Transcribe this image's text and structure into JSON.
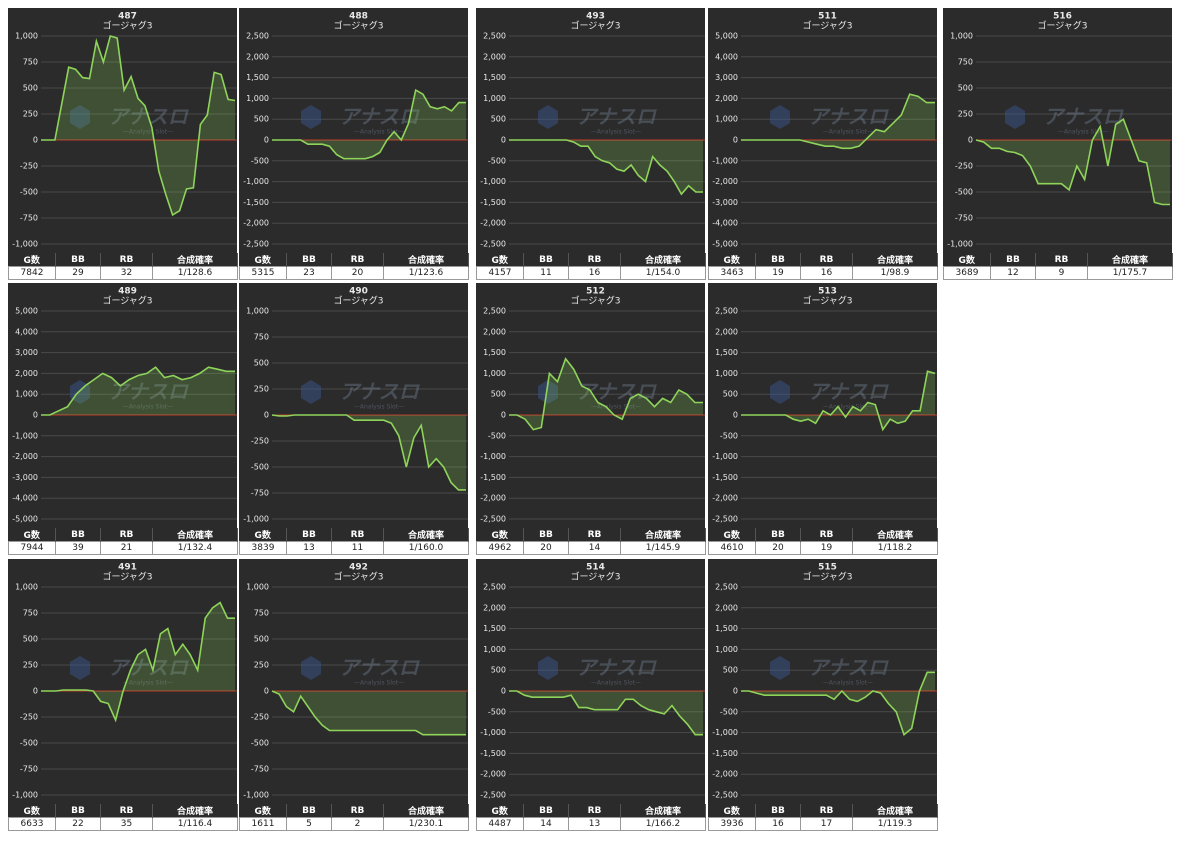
{
  "watermark": {
    "name": "アナスロ",
    "tagline": "—Analysis Slot—"
  },
  "chart_data": [
    {
      "type": "line",
      "title": "487",
      "subtitle": "ゴージャグ3",
      "color": "#8fd45a",
      "ylim": [
        -1000,
        1000
      ],
      "yticks": [
        {
          "value": 1000,
          "label": "1,000"
        },
        750,
        500,
        250,
        0,
        -250,
        -500,
        -750,
        {
          "value": -1000,
          "label": "-1,000"
        }
      ],
      "values": [
        0,
        0,
        0,
        350,
        700,
        680,
        600,
        590,
        950,
        750,
        1000,
        980,
        480,
        610,
        400,
        330,
        120,
        -300,
        -520,
        -720,
        -680,
        -470,
        -460,
        150,
        240,
        650,
        630,
        390,
        380
      ],
      "table": {
        "headers": [
          "G数",
          "BB",
          "RB",
          "合成確率"
        ],
        "row": [
          7842,
          29,
          32,
          "1/128.6"
        ]
      }
    },
    {
      "type": "line",
      "title": "488",
      "subtitle": "ゴージャグ3",
      "color": "#8fd45a",
      "ylim": [
        -2500,
        2500
      ],
      "yticks": [
        {
          "value": 2500,
          "label": "2,500"
        },
        {
          "value": 2000,
          "label": "2,000"
        },
        {
          "value": 1500,
          "label": "1,500"
        },
        {
          "value": 1000,
          "label": "1,000"
        },
        500,
        0,
        -500,
        {
          "value": -1000,
          "label": "-1,000"
        },
        {
          "value": -1500,
          "label": "-1,500"
        },
        {
          "value": -2000,
          "label": "-2,000"
        },
        {
          "value": -2500,
          "label": "-2,500"
        }
      ],
      "values": [
        0,
        0,
        0,
        0,
        0,
        -100,
        -100,
        -100,
        -150,
        -350,
        -450,
        -450,
        -450,
        -450,
        -400,
        -300,
        0,
        200,
        0,
        400,
        1200,
        1100,
        800,
        750,
        800,
        700,
        900,
        900
      ],
      "table": {
        "headers": [
          "G数",
          "BB",
          "RB",
          "合成確率"
        ],
        "row": [
          5315,
          23,
          20,
          "1/123.6"
        ]
      }
    },
    {
      "type": "line",
      "title": "493",
      "subtitle": "ゴージャグ3",
      "color": "#8fd45a",
      "ylim": [
        -2500,
        2500
      ],
      "yticks": [
        {
          "value": 2500,
          "label": "2,500"
        },
        {
          "value": 2000,
          "label": "2,000"
        },
        {
          "value": 1500,
          "label": "1,500"
        },
        {
          "value": 1000,
          "label": "1,000"
        },
        500,
        0,
        -500,
        {
          "value": -1000,
          "label": "-1,000"
        },
        {
          "value": -1500,
          "label": "-1,500"
        },
        {
          "value": -2000,
          "label": "-2,000"
        },
        {
          "value": -2500,
          "label": "-2,500"
        }
      ],
      "values": [
        0,
        0,
        0,
        0,
        0,
        0,
        0,
        0,
        0,
        -50,
        -150,
        -150,
        -400,
        -500,
        -550,
        -700,
        -750,
        -600,
        -850,
        -1000,
        -400,
        -600,
        -750,
        -1000,
        -1300,
        -1100,
        -1250,
        -1250
      ],
      "table": {
        "headers": [
          "G数",
          "BB",
          "RB",
          "合成確率"
        ],
        "row": [
          4157,
          11,
          16,
          "1/154.0"
        ]
      }
    },
    {
      "type": "line",
      "title": "511",
      "subtitle": "ゴージャグ3",
      "color": "#8fd45a",
      "ylim": [
        -5000,
        5000
      ],
      "yticks": [
        {
          "value": 5000,
          "label": "5,000"
        },
        {
          "value": 4000,
          "label": "4,000"
        },
        {
          "value": 3000,
          "label": "3,000"
        },
        {
          "value": 2000,
          "label": "2,000"
        },
        {
          "value": 1000,
          "label": "1,000"
        },
        0,
        {
          "value": -1000,
          "label": "-1,000"
        },
        {
          "value": -2000,
          "label": "-2,000"
        },
        {
          "value": -3000,
          "label": "-3,000"
        },
        {
          "value": -4000,
          "label": "-4,000"
        },
        {
          "value": -5000,
          "label": "-5,000"
        }
      ],
      "values": [
        0,
        0,
        0,
        0,
        0,
        0,
        0,
        0,
        -100,
        -200,
        -300,
        -300,
        -400,
        -400,
        -300,
        100,
        500,
        400,
        800,
        1200,
        2200,
        2100,
        1800,
        1800
      ],
      "table": {
        "headers": [
          "G数",
          "BB",
          "RB",
          "合成確率"
        ],
        "row": [
          3463,
          19,
          16,
          "1/98.9"
        ]
      }
    },
    {
      "type": "line",
      "title": "516",
      "subtitle": "ゴージャグ3",
      "color": "#8fd45a",
      "ylim": [
        -1000,
        1000
      ],
      "yticks": [
        {
          "value": 1000,
          "label": "1,000"
        },
        750,
        500,
        250,
        0,
        -250,
        -500,
        -750,
        {
          "value": -1000,
          "label": "-1,000"
        }
      ],
      "values": [
        0,
        -20,
        -80,
        -80,
        -110,
        -120,
        -150,
        -250,
        -420,
        -420,
        -420,
        -420,
        -480,
        -250,
        -380,
        0,
        130,
        -250,
        150,
        200,
        0,
        -200,
        -220,
        -600,
        -620,
        -620
      ],
      "table": {
        "headers": [
          "G数",
          "BB",
          "RB",
          "合成確率"
        ],
        "row": [
          3689,
          12,
          9,
          "1/175.7"
        ]
      }
    },
    {
      "type": "line",
      "title": "489",
      "subtitle": "ゴージャグ3",
      "color": "#8fd45a",
      "ylim": [
        -5000,
        5000
      ],
      "yticks": [
        {
          "value": 5000,
          "label": "5,000"
        },
        {
          "value": 4000,
          "label": "4,000"
        },
        {
          "value": 3000,
          "label": "3,000"
        },
        {
          "value": 2000,
          "label": "2,000"
        },
        {
          "value": 1000,
          "label": "1,000"
        },
        0,
        {
          "value": -1000,
          "label": "-1,000"
        },
        {
          "value": -2000,
          "label": "-2,000"
        },
        {
          "value": -3000,
          "label": "-3,000"
        },
        {
          "value": -4000,
          "label": "-4,000"
        },
        {
          "value": -5000,
          "label": "-5,000"
        }
      ],
      "values": [
        0,
        0,
        200,
        400,
        1000,
        1400,
        1700,
        2000,
        1800,
        1400,
        1700,
        1900,
        2000,
        2300,
        1800,
        1900,
        1700,
        1800,
        2000,
        2300,
        2200,
        2100,
        2100
      ],
      "table": {
        "headers": [
          "G数",
          "BB",
          "RB",
          "合成確率"
        ],
        "row": [
          7944,
          39,
          21,
          "1/132.4"
        ]
      }
    },
    {
      "type": "line",
      "title": "490",
      "subtitle": "ゴージャグ3",
      "color": "#8fd45a",
      "ylim": [
        -1000,
        1000
      ],
      "yticks": [
        {
          "value": 1000,
          "label": "1,000"
        },
        750,
        500,
        250,
        0,
        -250,
        -500,
        -750,
        {
          "value": -1000,
          "label": "-1,000"
        }
      ],
      "values": [
        0,
        -10,
        -10,
        0,
        0,
        0,
        0,
        0,
        0,
        0,
        0,
        -50,
        -50,
        -50,
        -50,
        -50,
        -80,
        -200,
        -500,
        -220,
        -100,
        -500,
        -420,
        -500,
        -650,
        -720,
        -720
      ],
      "table": {
        "headers": [
          "G数",
          "BB",
          "RB",
          "合成確率"
        ],
        "row": [
          3839,
          13,
          11,
          "1/160.0"
        ]
      }
    },
    {
      "type": "line",
      "title": "512",
      "subtitle": "ゴージャグ3",
      "color": "#8fd45a",
      "ylim": [
        -2500,
        2500
      ],
      "yticks": [
        {
          "value": 2500,
          "label": "2,500"
        },
        {
          "value": 2000,
          "label": "2,000"
        },
        {
          "value": 1500,
          "label": "1,500"
        },
        {
          "value": 1000,
          "label": "1,000"
        },
        500,
        0,
        -500,
        {
          "value": -1000,
          "label": "-1,000"
        },
        {
          "value": -1500,
          "label": "-1,500"
        },
        {
          "value": -2000,
          "label": "-2,000"
        },
        {
          "value": -2500,
          "label": "-2,500"
        }
      ],
      "values": [
        0,
        0,
        -100,
        -350,
        -300,
        1000,
        800,
        1350,
        1100,
        700,
        600,
        300,
        200,
        0,
        -100,
        400,
        500,
        400,
        200,
        400,
        300,
        600,
        500,
        300,
        300
      ],
      "table": {
        "headers": [
          "G数",
          "BB",
          "RB",
          "合成確率"
        ],
        "row": [
          4962,
          20,
          14,
          "1/145.9"
        ]
      }
    },
    {
      "type": "line",
      "title": "513",
      "subtitle": "ゴージャグ3",
      "color": "#8fd45a",
      "ylim": [
        -2500,
        2500
      ],
      "yticks": [
        {
          "value": 2500,
          "label": "2,500"
        },
        {
          "value": 2000,
          "label": "2,000"
        },
        {
          "value": 1500,
          "label": "1,500"
        },
        {
          "value": 1000,
          "label": "1,000"
        },
        500,
        0,
        -500,
        {
          "value": -1000,
          "label": "-1,000"
        },
        {
          "value": -1500,
          "label": "-1,500"
        },
        {
          "value": -2000,
          "label": "-2,000"
        },
        {
          "value": -2500,
          "label": "-2,500"
        }
      ],
      "values": [
        0,
        0,
        0,
        0,
        0,
        0,
        0,
        -100,
        -150,
        -100,
        -200,
        100,
        0,
        200,
        -50,
        200,
        100,
        300,
        250,
        -350,
        -100,
        -200,
        -150,
        100,
        100,
        1050,
        1000
      ],
      "table": {
        "headers": [
          "G数",
          "BB",
          "RB",
          "合成確率"
        ],
        "row": [
          4610,
          20,
          19,
          "1/118.2"
        ]
      }
    },
    {
      "type": "line",
      "title": "491",
      "subtitle": "ゴージャグ3",
      "color": "#8fd45a",
      "ylim": [
        -1000,
        1000
      ],
      "yticks": [
        {
          "value": 1000,
          "label": "1,000"
        },
        750,
        500,
        250,
        0,
        -250,
        -500,
        -750,
        {
          "value": -1000,
          "label": "-1,000"
        }
      ],
      "values": [
        0,
        0,
        0,
        10,
        10,
        10,
        10,
        0,
        -100,
        -120,
        -280,
        0,
        200,
        350,
        400,
        200,
        550,
        600,
        350,
        450,
        350,
        200,
        700,
        800,
        850,
        700,
        700
      ],
      "table": {
        "headers": [
          "G数",
          "BB",
          "RB",
          "合成確率"
        ],
        "row": [
          6633,
          22,
          35,
          "1/116.4"
        ]
      }
    },
    {
      "type": "line",
      "title": "492",
      "subtitle": "ゴージャグ3",
      "color": "#8fd45a",
      "ylim": [
        -1000,
        1000
      ],
      "yticks": [
        {
          "value": 1000,
          "label": "1,000"
        },
        750,
        500,
        250,
        0,
        -250,
        -500,
        -750,
        {
          "value": -1000,
          "label": "-1,000"
        }
      ],
      "values": [
        0,
        -30,
        -150,
        -200,
        -50,
        -150,
        -250,
        -330,
        -380,
        -380,
        -380,
        -380,
        -380,
        -380,
        -380,
        -380,
        -380,
        -380,
        -380,
        -380,
        -380,
        -420,
        -420,
        -420,
        -420,
        -420,
        -420,
        -420
      ],
      "table": {
        "headers": [
          "G数",
          "BB",
          "RB",
          "合成確率"
        ],
        "row": [
          1611,
          5,
          2,
          "1/230.1"
        ]
      }
    },
    {
      "type": "line",
      "title": "514",
      "subtitle": "ゴージャグ3",
      "color": "#8fd45a",
      "ylim": [
        -2500,
        2500
      ],
      "yticks": [
        {
          "value": 2500,
          "label": "2,500"
        },
        {
          "value": 2000,
          "label": "2,000"
        },
        {
          "value": 1500,
          "label": "1,500"
        },
        {
          "value": 1000,
          "label": "1,000"
        },
        500,
        0,
        -500,
        {
          "value": -1000,
          "label": "-1,000"
        },
        {
          "value": -1500,
          "label": "-1,500"
        },
        {
          "value": -2000,
          "label": "-2,000"
        },
        {
          "value": -2500,
          "label": "-2,500"
        }
      ],
      "values": [
        0,
        0,
        -100,
        -150,
        -150,
        -150,
        -150,
        -150,
        -100,
        -400,
        -400,
        -450,
        -450,
        -450,
        -450,
        -200,
        -200,
        -350,
        -450,
        -500,
        -550,
        -350,
        -600,
        -800,
        -1050,
        -1050
      ],
      "table": {
        "headers": [
          "G数",
          "BB",
          "RB",
          "合成確率"
        ],
        "row": [
          4487,
          14,
          13,
          "1/166.2"
        ]
      }
    },
    {
      "type": "line",
      "title": "515",
      "subtitle": "ゴージャグ3",
      "color": "#8fd45a",
      "ylim": [
        -2500,
        2500
      ],
      "yticks": [
        {
          "value": 2500,
          "label": "2,500"
        },
        {
          "value": 2000,
          "label": "2,000"
        },
        {
          "value": 1500,
          "label": "1,500"
        },
        {
          "value": 1000,
          "label": "1,000"
        },
        500,
        0,
        -500,
        {
          "value": -1000,
          "label": "-1,000"
        },
        {
          "value": -1500,
          "label": "-1,500"
        },
        {
          "value": -2000,
          "label": "-2,000"
        },
        {
          "value": -2500,
          "label": "-2,500"
        }
      ],
      "values": [
        0,
        0,
        -50,
        -100,
        -100,
        -100,
        -100,
        -100,
        -100,
        -100,
        -100,
        -100,
        -200,
        0,
        -200,
        -250,
        -150,
        0,
        -50,
        -300,
        -500,
        -1050,
        -900,
        0,
        450,
        450
      ],
      "table": {
        "headers": [
          "G数",
          "BB",
          "RB",
          "合成確率"
        ],
        "row": [
          3936,
          16,
          17,
          "1/119.3"
        ]
      }
    }
  ]
}
